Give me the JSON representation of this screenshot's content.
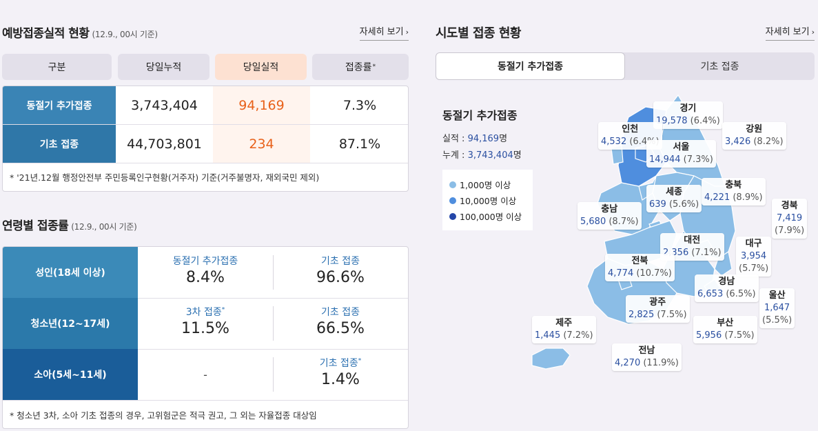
{
  "vaccination": {
    "title": "예방접종실적 현황",
    "date": "(12.9., 00시 기준)",
    "more": "자세히 보기",
    "headers": [
      "구분",
      "당일누적",
      "당일실적",
      "접종률"
    ],
    "rate_mark": "*",
    "rows": [
      {
        "label": "동절기 추가접종",
        "cumulative": "3,743,404",
        "daily": "94,169",
        "rate": "7.3%"
      },
      {
        "label": "기초 접종",
        "cumulative": "44,703,801",
        "daily": "234",
        "rate": "87.1%"
      }
    ],
    "note": "* '21년.12월 행정안전부 주민등록인구현황(거주자) 기준(거주불명자, 재외국민 제외)"
  },
  "age": {
    "title": "연령별 접종률",
    "date": "(12.9., 00시 기준)",
    "rows": [
      {
        "label": "성인(18세 이상)",
        "c1_label": "동절기 추가접종",
        "c1_mark": "",
        "c1_value": "8.4%",
        "c2_label": "기초 접종",
        "c2_mark": "",
        "c2_value": "96.6%"
      },
      {
        "label": "청소년(12~17세)",
        "c1_label": "3차 접종",
        "c1_mark": "*",
        "c1_value": "11.5%",
        "c2_label": "기초 접종",
        "c2_mark": "",
        "c2_value": "66.5%"
      },
      {
        "label": "소아(5세~11세)",
        "c1_label": "",
        "c1_mark": "",
        "c1_value": "-",
        "c2_label": "기초 접종",
        "c2_mark": "*",
        "c2_value": "1.4%"
      }
    ],
    "note": "* 청소년 3차, 소아 기초 접종의 경우, 고위험군은 적극 권고, 그 외는 자율접종 대상임"
  },
  "region": {
    "title": "시도별 접종 현황",
    "more": "자세히 보기",
    "tabs": [
      "동절기 추가접종",
      "기초 접종"
    ],
    "stat_title": "동절기 추가접종",
    "perf_label": "실적 :",
    "perf_value": "94,169",
    "perf_unit": "명",
    "total_label": "누계 :",
    "total_value": "3,743,404",
    "total_unit": "명",
    "legend": [
      "1,000명 이상",
      "10,000명 이상",
      "100,000명 이상"
    ],
    "legend_colors": [
      "#8bbde6",
      "#4f8ede",
      "#2446a8"
    ],
    "regions": [
      {
        "name": "경기",
        "value": "19,578",
        "pct": "(6.4%)"
      },
      {
        "name": "인천",
        "value": "4,532",
        "pct": "(6.4%)"
      },
      {
        "name": "강원",
        "value": "3,426",
        "pct": "(8.2%)"
      },
      {
        "name": "서울",
        "value": "14,944",
        "pct": "(7.3%)"
      },
      {
        "name": "세종",
        "value": "639",
        "pct": "(5.6%)"
      },
      {
        "name": "충북",
        "value": "4,221",
        "pct": "(8.9%)"
      },
      {
        "name": "충남",
        "value": "5,680",
        "pct": "(8.7%)"
      },
      {
        "name": "경북",
        "value": "7,419",
        "pct": "(7.9%)"
      },
      {
        "name": "대전",
        "value": "2,356",
        "pct": "(7.1%)"
      },
      {
        "name": "대구",
        "value": "3,954",
        "pct": "(5.7%)"
      },
      {
        "name": "전북",
        "value": "4,774",
        "pct": "(10.7%)"
      },
      {
        "name": "경남",
        "value": "6,653",
        "pct": "(6.5%)"
      },
      {
        "name": "울산",
        "value": "1,647",
        "pct": "(5.5%)"
      },
      {
        "name": "광주",
        "value": "2,825",
        "pct": "(7.5%)"
      },
      {
        "name": "제주",
        "value": "1,445",
        "pct": "(7.2%)"
      },
      {
        "name": "부산",
        "value": "5,956",
        "pct": "(7.5%)"
      },
      {
        "name": "전남",
        "value": "4,270",
        "pct": "(11.9%)"
      }
    ]
  }
}
